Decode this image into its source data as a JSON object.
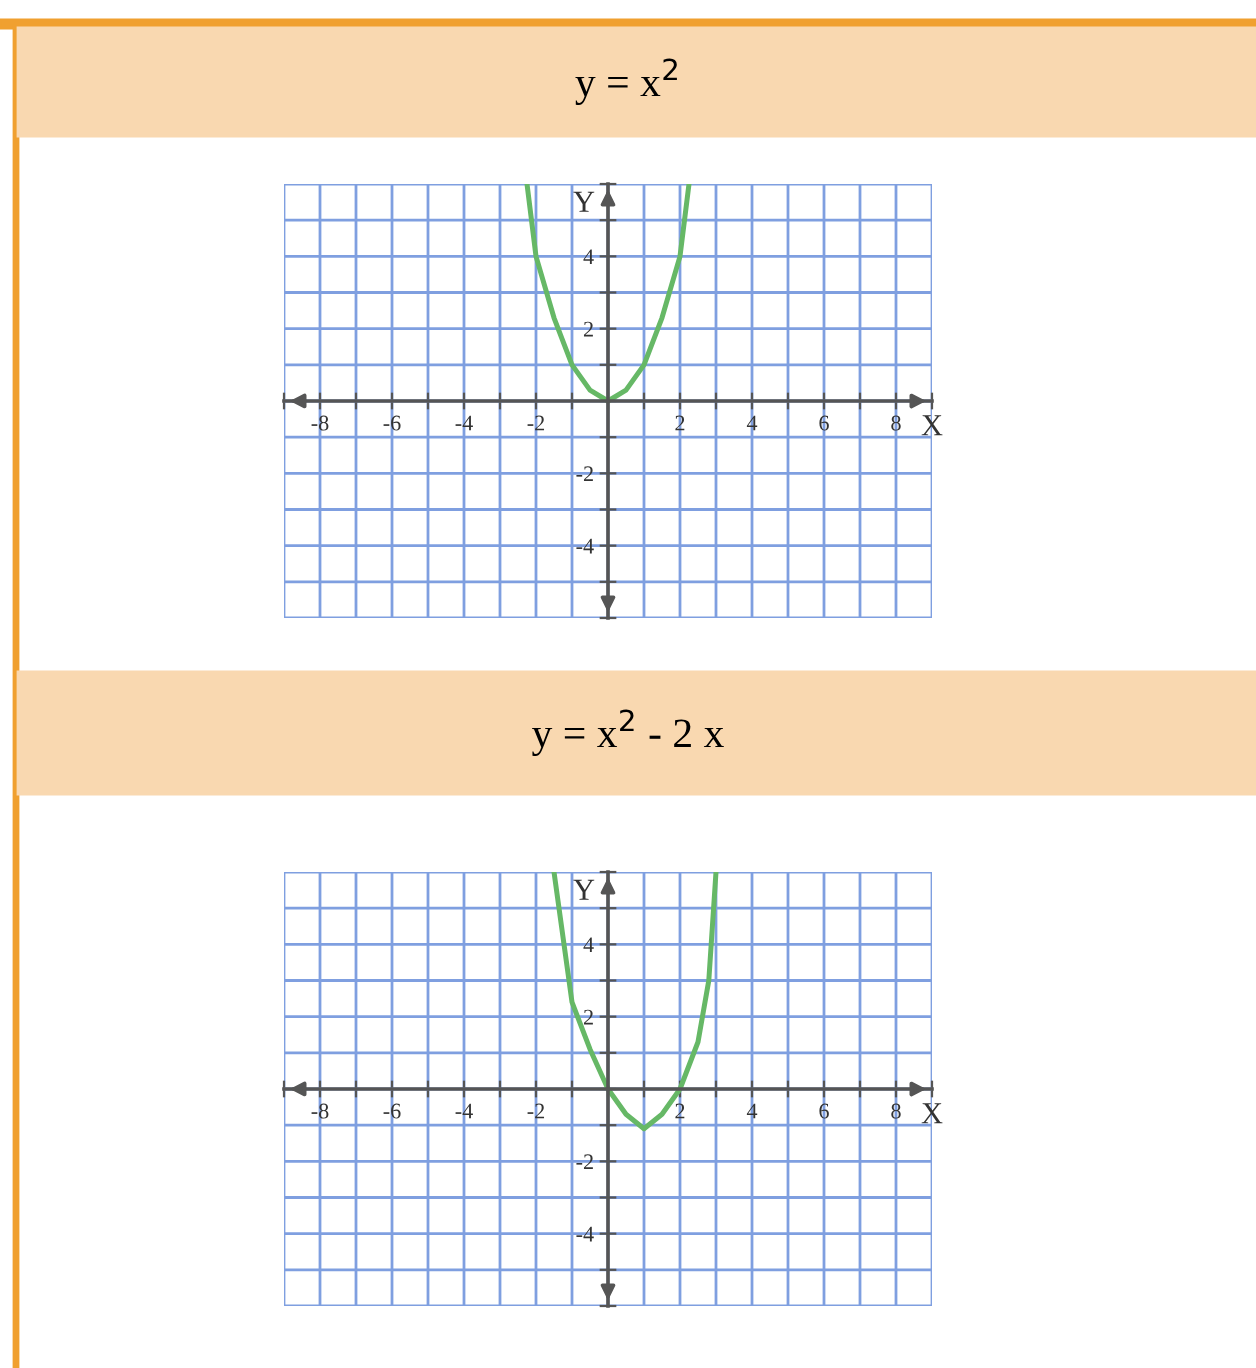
{
  "chart_data": [
    {
      "type": "line",
      "title": "y = x$^{2}$",
      "xlabel": "X",
      "ylabel": "Y",
      "series": [
        {
          "color": "#66b866",
          "x": [
            -2.25,
            -2,
            -1.5,
            -1,
            -0.5,
            0,
            0.5,
            1,
            1.5,
            2,
            2.25
          ],
          "values": [
            6,
            4,
            2.3,
            1,
            0.3,
            0,
            0.3,
            1,
            2.3,
            4,
            6
          ]
        }
      ],
      "xlim": [
        -9,
        9
      ],
      "ylim": [
        -6,
        6
      ],
      "xticks": [
        {
          "value": -9,
          "label": null
        },
        -8,
        {
          "value": -7,
          "label": null
        },
        -6,
        {
          "value": -5,
          "label": null
        },
        -4,
        {
          "value": -3,
          "label": null
        },
        -2,
        {
          "value": -1,
          "label": null
        },
        {
          "value": 0,
          "label": null
        },
        {
          "value": 1,
          "label": null
        },
        2,
        {
          "value": 3,
          "label": null
        },
        4,
        {
          "value": 5,
          "label": null
        },
        6,
        {
          "value": 7,
          "label": null
        },
        8,
        {
          "value": 9,
          "label": null
        }
      ],
      "yticks": [
        {
          "value": -6,
          "label": null
        },
        {
          "value": -5,
          "label": null
        },
        -4,
        {
          "value": -3,
          "label": null
        },
        -2,
        {
          "value": -1,
          "label": null
        },
        {
          "value": 0,
          "label": null
        },
        {
          "value": 1,
          "label": null
        },
        2,
        {
          "value": 3,
          "label": null
        },
        4,
        {
          "value": 5,
          "label": null
        },
        {
          "value": 6,
          "label": null
        }
      ],
      "grid": true,
      "marker": "none",
      "line_style": "solid"
    },
    {
      "type": "line",
      "title": "y = x$^{2}$ - 2 x",
      "xlabel": "X",
      "ylabel": "Y",
      "series": [
        {
          "color": "#66b866",
          "x": [
            -1.5,
            -1,
            -0.5,
            0,
            0.5,
            1,
            1.5,
            2,
            2.5,
            2.8,
            3
          ],
          "values": [
            6,
            2.4,
            1.1,
            0,
            -0.7,
            -1.1,
            -0.7,
            0,
            1.3,
            3,
            6
          ]
        }
      ],
      "xlim": [
        -9,
        9
      ],
      "ylim": [
        -6,
        6
      ],
      "xticks": [
        {
          "value": -9,
          "label": null
        },
        -8,
        {
          "value": -7,
          "label": null
        },
        -6,
        {
          "value": -5,
          "label": null
        },
        -4,
        {
          "value": -3,
          "label": null
        },
        -2,
        {
          "value": -1,
          "label": null
        },
        {
          "value": 0,
          "label": null
        },
        {
          "value": 1,
          "label": null
        },
        2,
        {
          "value": 3,
          "label": null
        },
        4,
        {
          "value": 5,
          "label": null
        },
        6,
        {
          "value": 7,
          "label": null
        },
        8,
        {
          "value": 9,
          "label": null
        }
      ],
      "yticks": [
        {
          "value": -6,
          "label": null
        },
        {
          "value": -5,
          "label": null
        },
        -4,
        {
          "value": -3,
          "label": null
        },
        -2,
        {
          "value": -1,
          "label": null
        },
        {
          "value": 0,
          "label": null
        },
        {
          "value": 1,
          "label": null
        },
        2,
        {
          "value": 3,
          "label": null
        },
        4,
        {
          "value": 5,
          "label": null
        },
        {
          "value": 6,
          "label": null
        }
      ],
      "grid": true,
      "marker": "none",
      "line_style": "solid"
    }
  ]
}
